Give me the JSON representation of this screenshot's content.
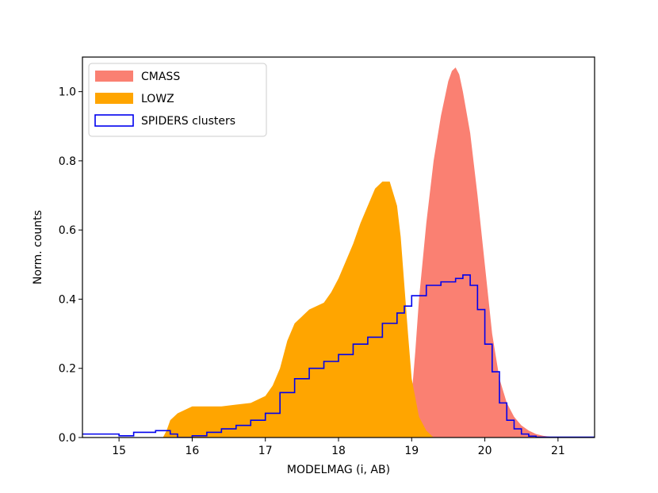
{
  "chart_data": {
    "type": "area",
    "title": "",
    "xlabel": "MODELMAG (i, AB)",
    "ylabel": "Norm. counts",
    "xlim": [
      14.5,
      21.5
    ],
    "ylim": [
      0.0,
      1.1
    ],
    "xticks": [
      15,
      16,
      17,
      18,
      19,
      20,
      21
    ],
    "yticks": [
      0.0,
      0.2,
      0.4,
      0.6,
      0.8,
      1.0
    ],
    "xtick_labels": [
      "15",
      "16",
      "17",
      "18",
      "19",
      "20",
      "21"
    ],
    "ytick_labels": [
      "0.0",
      "0.2",
      "0.4",
      "0.6",
      "0.8",
      "1.0"
    ],
    "grid": false,
    "legend_position": "top-left",
    "series": [
      {
        "name": "CMASS",
        "kind": "filled-histogram",
        "color": "#fa8072",
        "x": [
          18.8,
          18.9,
          19.0,
          19.05,
          19.1,
          19.2,
          19.3,
          19.4,
          19.5,
          19.55,
          19.6,
          19.65,
          19.7,
          19.8,
          19.9,
          20.0,
          20.1,
          20.2,
          20.3,
          20.4,
          20.5,
          20.6,
          20.7,
          20.8,
          20.9,
          21.0
        ],
        "values": [
          0.0,
          0.02,
          0.12,
          0.25,
          0.4,
          0.62,
          0.8,
          0.93,
          1.03,
          1.06,
          1.07,
          1.05,
          1.0,
          0.88,
          0.7,
          0.5,
          0.3,
          0.17,
          0.1,
          0.06,
          0.035,
          0.02,
          0.01,
          0.005,
          0.002,
          0.0
        ]
      },
      {
        "name": "LOWZ",
        "kind": "filled-histogram",
        "color": "#ffa500",
        "x": [
          15.6,
          15.65,
          15.7,
          15.8,
          15.9,
          16.0,
          16.2,
          16.4,
          16.6,
          16.8,
          17.0,
          17.1,
          17.2,
          17.3,
          17.4,
          17.6,
          17.8,
          17.9,
          18.0,
          18.1,
          18.2,
          18.3,
          18.4,
          18.5,
          18.55,
          18.6,
          18.7,
          18.8,
          18.85,
          18.9,
          18.95,
          19.0,
          19.1,
          19.2,
          19.3
        ],
        "values": [
          0.0,
          0.02,
          0.05,
          0.07,
          0.08,
          0.09,
          0.09,
          0.09,
          0.095,
          0.1,
          0.12,
          0.15,
          0.2,
          0.28,
          0.33,
          0.37,
          0.39,
          0.42,
          0.46,
          0.51,
          0.56,
          0.62,
          0.67,
          0.72,
          0.73,
          0.74,
          0.74,
          0.67,
          0.58,
          0.44,
          0.3,
          0.17,
          0.06,
          0.02,
          0.0
        ]
      },
      {
        "name": "SPIDERS clusters",
        "kind": "step-histogram",
        "color": "#0000ee",
        "x": [
          14.5,
          15.0,
          15.2,
          15.5,
          15.7,
          15.8,
          16.0,
          16.2,
          16.4,
          16.6,
          16.8,
          17.0,
          17.2,
          17.4,
          17.6,
          17.8,
          18.0,
          18.2,
          18.4,
          18.6,
          18.8,
          18.9,
          19.0,
          19.2,
          19.4,
          19.6,
          19.7,
          19.8,
          19.9,
          20.0,
          20.1,
          20.2,
          20.3,
          20.4,
          20.5,
          20.6,
          20.7,
          21.5
        ],
        "values": [
          0.01,
          0.005,
          0.015,
          0.02,
          0.01,
          0.0,
          0.005,
          0.015,
          0.025,
          0.035,
          0.05,
          0.07,
          0.13,
          0.17,
          0.2,
          0.22,
          0.24,
          0.27,
          0.29,
          0.33,
          0.36,
          0.38,
          0.41,
          0.44,
          0.45,
          0.46,
          0.47,
          0.44,
          0.37,
          0.27,
          0.19,
          0.1,
          0.05,
          0.025,
          0.01,
          0.004,
          0.001,
          0.0
        ]
      }
    ]
  }
}
